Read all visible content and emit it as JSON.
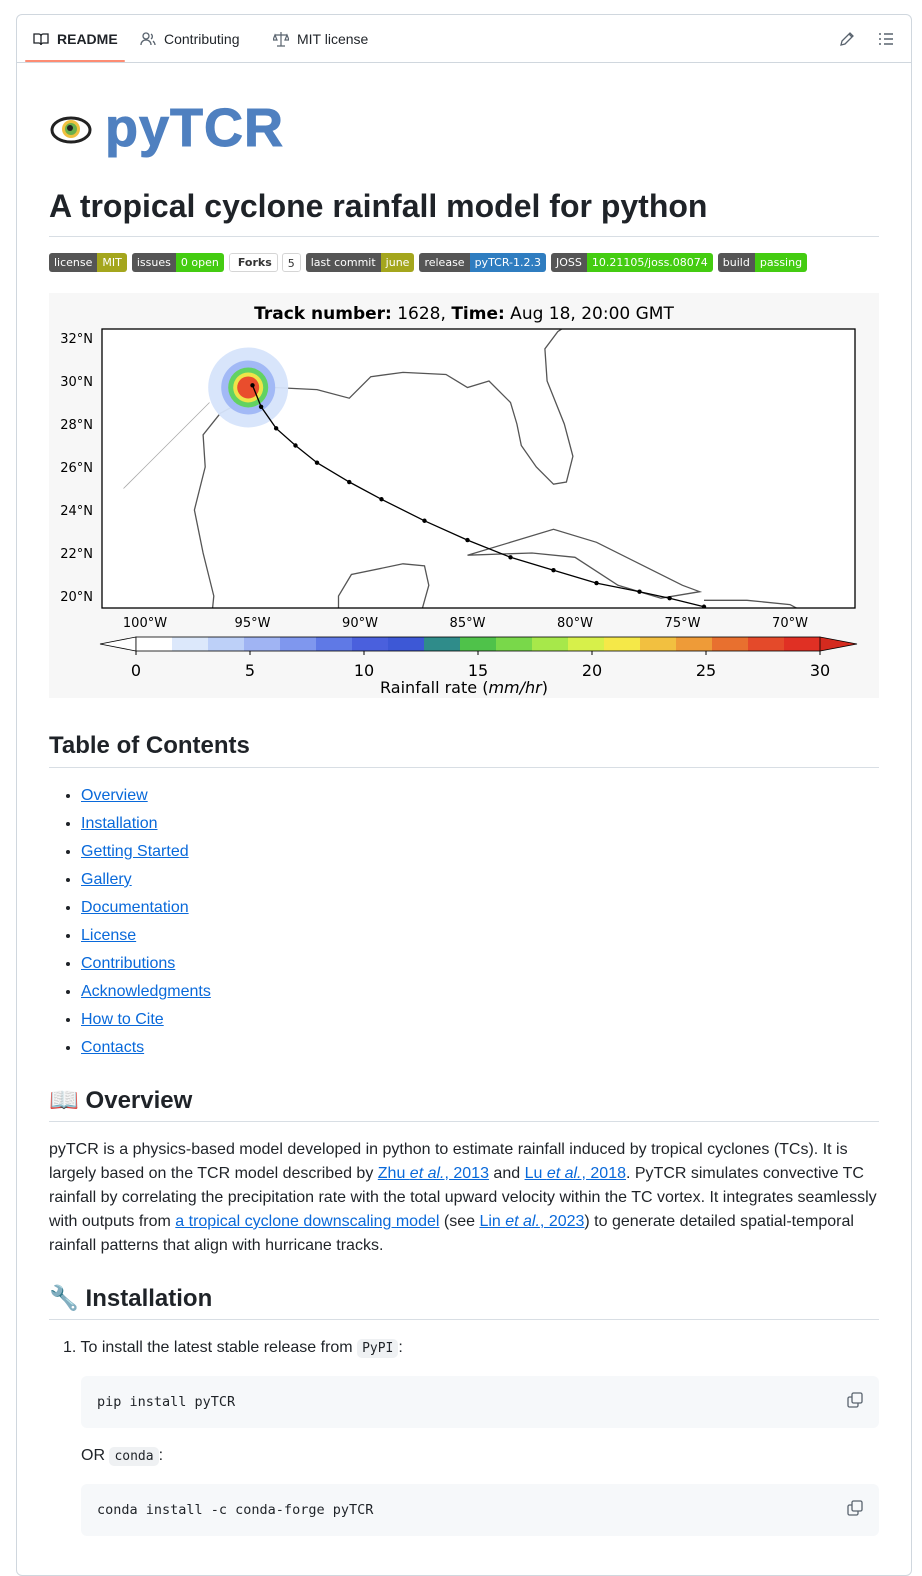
{
  "tabs": [
    "README",
    "Contributing",
    "MIT license"
  ],
  "logo": "pyTCR",
  "title": "A tropical cyclone rainfall model for python",
  "badges": [
    {
      "label": "license",
      "value": "MIT",
      "color": "#a4a61d"
    },
    {
      "label": "issues",
      "value": "0 open",
      "color": "#4c1"
    },
    {
      "label": "Forks",
      "value": "5",
      "color": "#ffffff"
    },
    {
      "label": "last commit",
      "value": "june",
      "color": "#a4a61d"
    },
    {
      "label": "release",
      "value": "pyTCR-1.2.3",
      "color": "#2f7dc0"
    },
    {
      "label": "JOSS",
      "value": "10.21105/joss.08074",
      "color": "#4c1"
    },
    {
      "label": "build",
      "value": "passing",
      "color": "#4c1"
    }
  ],
  "figure": {
    "title": [
      "Track number:",
      " 1628, ",
      "Time:",
      " Aug 18, 20:00 GMT"
    ],
    "lat_labels": [
      "32°N",
      "30°N",
      "28°N",
      "26°N",
      "24°N",
      "22°N",
      "20°N"
    ],
    "lon_labels": [
      "100°W",
      "95°W",
      "90°W",
      "85°W",
      "80°W",
      "75°W",
      "70°W"
    ],
    "colorbar_ticks": [
      0,
      5,
      10,
      15,
      20,
      25,
      30
    ],
    "colorbar_label": [
      "Rainfall rate (",
      "mm/hr",
      ")"
    ]
  },
  "toc": {
    "title": "Table of Contents",
    "items": [
      "Overview",
      "Installation",
      "Getting Started",
      "Gallery",
      "Documentation",
      "License",
      "Contributions",
      "Acknowledgments",
      "How to Cite",
      "Contacts"
    ]
  },
  "overview": {
    "title": "📖 Overview",
    "segments": [
      {
        "text": "pyTCR is a physics-based model developed in python to estimate rainfall induced by tropical cyclones (TCs). It is largely based on the TCR model described by "
      },
      {
        "link": [
          {
            "text": "Zhu "
          },
          {
            "text": "et al.",
            "em": true
          },
          {
            "text": ", 2013"
          }
        ]
      },
      {
        "text": " and "
      },
      {
        "link": [
          {
            "text": "Lu "
          },
          {
            "text": "et al.",
            "em": true
          },
          {
            "text": ", 2018"
          }
        ]
      },
      {
        "text": ". PyTCR simulates convective TC rainfall by correlating the precipitation rate with the total upward velocity within the TC vortex. It integrates seamlessly with outputs from "
      },
      {
        "link": [
          {
            "text": "a tropical cyclone downscaling model"
          }
        ]
      },
      {
        "text": " (see "
      },
      {
        "link": [
          {
            "text": "Lin "
          },
          {
            "text": "et al.",
            "em": true
          },
          {
            "text": ", 2023"
          }
        ]
      },
      {
        "text": ") to generate detailed spatial-temporal rainfall patterns that align with hurricane tracks."
      }
    ]
  },
  "installation": {
    "title": "🔧 Installation",
    "step": [
      {
        "text": "To install the latest stable release from "
      },
      {
        "code": "PyPI"
      },
      {
        "text": ":"
      }
    ],
    "command_1": "pip install pyTCR",
    "alt": [
      {
        "text": "OR "
      },
      {
        "code": "conda"
      },
      {
        "text": ":"
      }
    ],
    "command_2": "conda install -c conda-forge pyTCR"
  }
}
